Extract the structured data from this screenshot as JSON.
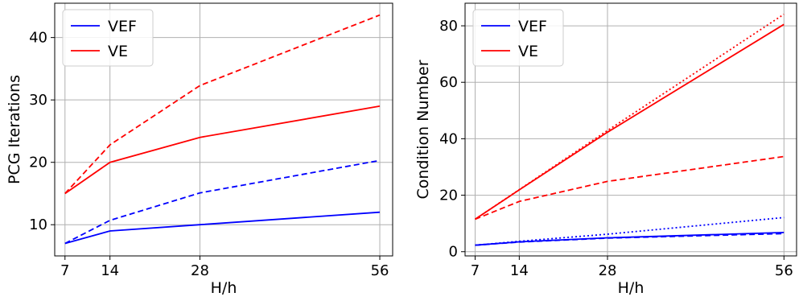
{
  "chart_data": [
    {
      "type": "line",
      "xlabel": "H/h",
      "ylabel": "PCG Iterations",
      "xlim": [
        5.4,
        58.0
      ],
      "ylim": [
        5.0,
        45.5
      ],
      "xticks": [
        7,
        14,
        28,
        56
      ],
      "yticks": [
        10,
        20,
        30,
        40
      ],
      "grid": true,
      "legend": {
        "placement": "top-left",
        "entries": [
          {
            "name": "VEF",
            "color": "#0000ff"
          },
          {
            "name": "VE",
            "color": "#ff0000"
          }
        ]
      },
      "x": [
        7,
        14,
        28,
        56
      ],
      "series": [
        {
          "color": "#0000ff",
          "dash": "solid",
          "values": [
            7,
            9,
            10,
            12
          ]
        },
        {
          "color": "#0000ff",
          "dash": "dashed",
          "values": [
            7,
            10.7,
            15.1,
            20.3
          ]
        },
        {
          "color": "#ff0000",
          "dash": "solid",
          "values": [
            15,
            20,
            24,
            29
          ]
        },
        {
          "color": "#ff0000",
          "dash": "dashed",
          "values": [
            15,
            22.8,
            32.3,
            43.6
          ]
        }
      ]
    },
    {
      "type": "line",
      "xlabel": "H/h",
      "ylabel": "Condition Number",
      "xlim": [
        5.4,
        58.0
      ],
      "ylim": [
        -1.5,
        88.0
      ],
      "xticks": [
        7,
        14,
        28,
        56
      ],
      "yticks": [
        0,
        20,
        40,
        60,
        80
      ],
      "grid": true,
      "legend": {
        "placement": "top-left",
        "entries": [
          {
            "name": "VEF",
            "color": "#0000ff"
          },
          {
            "name": "VE",
            "color": "#ff0000"
          }
        ]
      },
      "x": [
        7,
        14,
        28,
        56
      ],
      "series": [
        {
          "color": "#0000ff",
          "dash": "solid",
          "values": [
            2.3,
            3.5,
            4.9,
            6.8
          ]
        },
        {
          "color": "#0000ff",
          "dash": "dashed",
          "values": [
            2.3,
            3.4,
            4.8,
            6.4
          ]
        },
        {
          "color": "#0000ff",
          "dash": "dotted",
          "values": [
            2.3,
            3.7,
            6.2,
            12.1
          ]
        },
        {
          "color": "#ff0000",
          "dash": "solid",
          "values": [
            11.5,
            21.9,
            42.3,
            80.5
          ]
        },
        {
          "color": "#ff0000",
          "dash": "dashed",
          "values": [
            11.5,
            17.8,
            24.9,
            33.7
          ]
        },
        {
          "color": "#ff0000",
          "dash": "dotted",
          "values": [
            11.5,
            22.0,
            42.9,
            84.1
          ]
        }
      ]
    }
  ]
}
